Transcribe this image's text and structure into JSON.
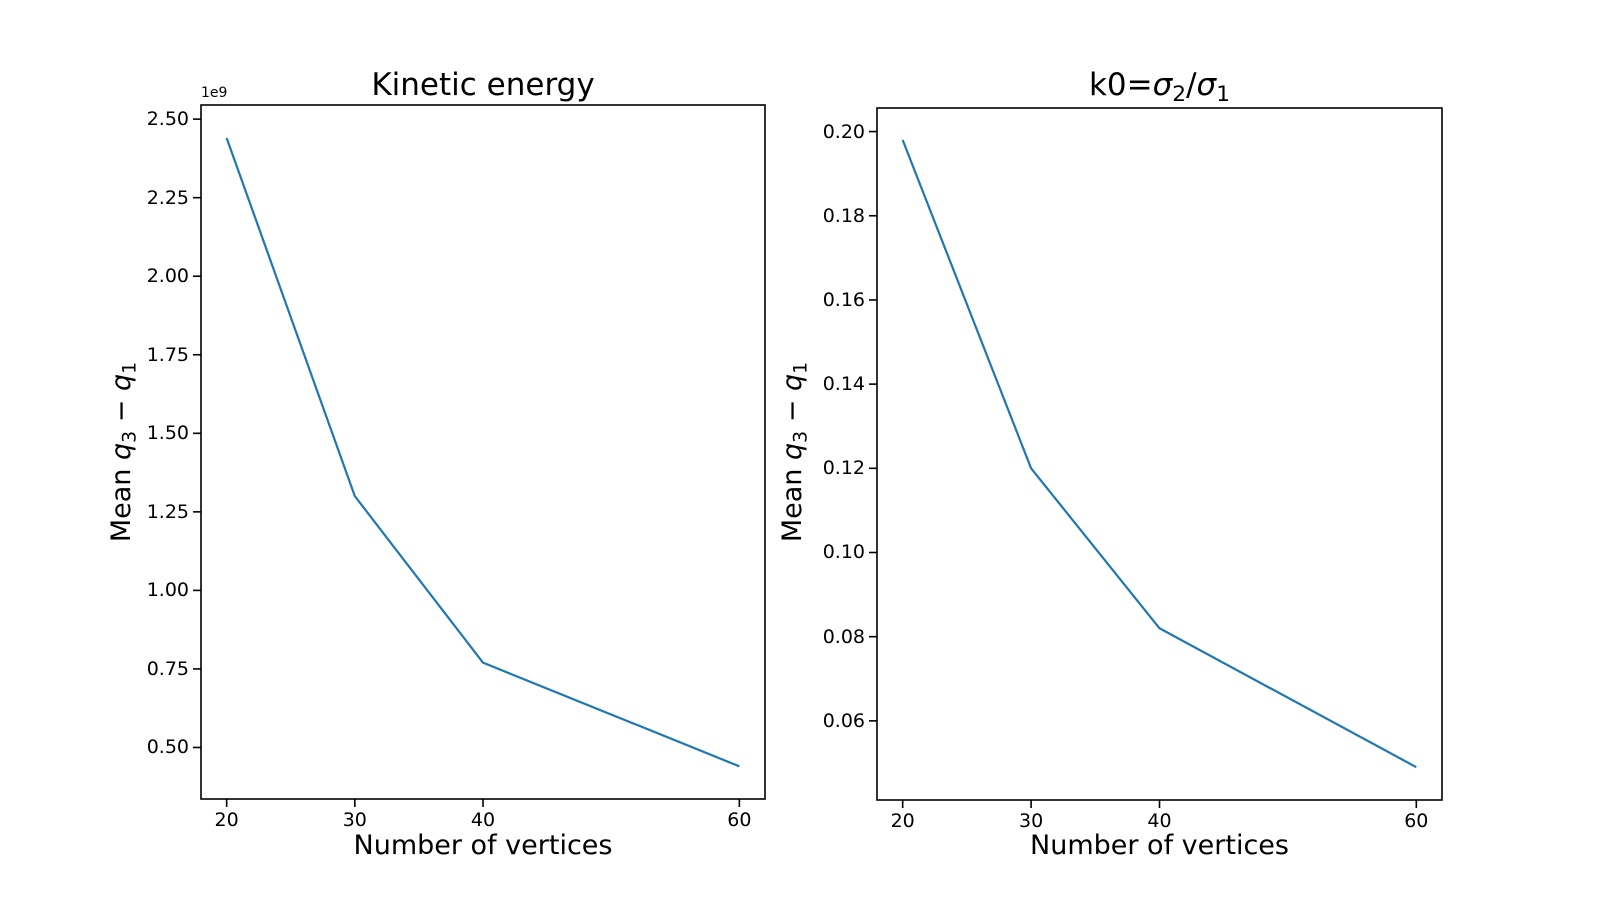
{
  "figure": {
    "background": "#ffffff",
    "axis_color": "#000000",
    "accent_color": "#1f77b4"
  },
  "chart_data": [
    {
      "type": "line",
      "title": "Kinetic energy",
      "xlabel": "Number of vertices",
      "ylabel": "Mean q3 − q1",
      "ylabel_parts": [
        "Mean ",
        "q",
        "3",
        " − ",
        "q",
        "1"
      ],
      "y_offset_text": "1e9",
      "x": [
        20,
        30,
        40,
        60
      ],
      "y": [
        2440000000,
        1300000000,
        770000000,
        440000000
      ],
      "xlim": [
        18,
        62
      ],
      "ylim": [
        336000000,
        2545000000
      ],
      "xtick_values": [
        20,
        30,
        40,
        60
      ],
      "xtick_labels": [
        "20",
        "30",
        "40",
        "60"
      ],
      "ytick_values": [
        2500000000,
        2250000000,
        2000000000,
        1750000000,
        1500000000,
        1250000000,
        1000000000,
        750000000,
        500000000
      ],
      "ytick_labels": [
        "2.50",
        "2.25",
        "2.00",
        "1.75",
        "1.50",
        "1.25",
        "1.00",
        "0.75",
        "0.50"
      ],
      "line_color": "#1f77b4",
      "grid": false,
      "legend": null
    },
    {
      "type": "line",
      "title": "k0=σ2/σ1",
      "title_parts": [
        "k0=",
        "σ",
        "2",
        "/",
        "σ",
        "1"
      ],
      "xlabel": "Number of vertices",
      "ylabel": "Mean q3 − q1",
      "ylabel_parts": [
        "Mean ",
        "q",
        "3",
        " − ",
        "q",
        "1"
      ],
      "x": [
        20,
        30,
        40,
        60
      ],
      "y": [
        0.198,
        0.12,
        0.082,
        0.049
      ],
      "xlim": [
        18,
        62
      ],
      "ylim": [
        0.0412,
        0.2056
      ],
      "xtick_values": [
        20,
        30,
        40,
        60
      ],
      "xtick_labels": [
        "20",
        "30",
        "40",
        "60"
      ],
      "ytick_values": [
        0.2,
        0.18,
        0.16,
        0.14,
        0.12,
        0.1,
        0.08,
        0.06
      ],
      "ytick_labels": [
        "0.20",
        "0.18",
        "0.16",
        "0.14",
        "0.12",
        "0.10",
        "0.08",
        "0.06"
      ],
      "line_color": "#1f77b4",
      "grid": false,
      "legend": null
    }
  ]
}
